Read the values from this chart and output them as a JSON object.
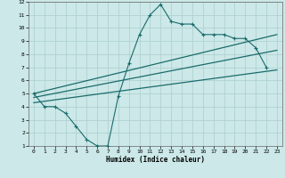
{
  "xlabel": "Humidex (Indice chaleur)",
  "bg_color": "#cce8e8",
  "grid_color": "#aacece",
  "line_color": "#1a6b6b",
  "xlim": [
    -0.5,
    23.5
  ],
  "ylim": [
    1,
    12
  ],
  "xticks": [
    0,
    1,
    2,
    3,
    4,
    5,
    6,
    7,
    8,
    9,
    10,
    11,
    12,
    13,
    14,
    15,
    16,
    17,
    18,
    19,
    20,
    21,
    22,
    23
  ],
  "yticks": [
    1,
    2,
    3,
    4,
    5,
    6,
    7,
    8,
    9,
    10,
    11,
    12
  ],
  "curve_x": [
    0,
    1,
    2,
    3,
    4,
    5,
    6,
    7,
    8,
    9,
    10,
    11,
    12,
    13,
    14,
    15,
    16,
    17,
    18,
    19,
    20,
    21,
    22
  ],
  "curve_y": [
    5.0,
    4.0,
    4.0,
    3.5,
    2.5,
    1.5,
    1.0,
    1.0,
    4.8,
    7.3,
    9.5,
    11.0,
    11.8,
    10.5,
    10.3,
    10.3,
    9.5,
    9.5,
    9.5,
    9.2,
    9.2,
    8.5,
    7.0
  ],
  "line1_x": [
    0,
    23
  ],
  "line1_y": [
    5.0,
    9.5
  ],
  "line2_x": [
    0,
    23
  ],
  "line2_y": [
    4.7,
    8.3
  ],
  "line3_x": [
    0,
    23
  ],
  "line3_y": [
    4.3,
    6.8
  ]
}
